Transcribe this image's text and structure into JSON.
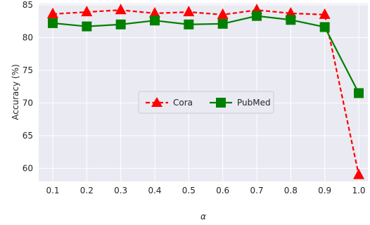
{
  "chart_data": {
    "type": "line",
    "title": "",
    "xlabel": "α",
    "ylabel": "Accuracy (%)",
    "x": [
      "0.1",
      "0.2",
      "0.3",
      "0.4",
      "0.5",
      "0.6",
      "0.7",
      "0.8",
      "0.9",
      "1.0"
    ],
    "ylim": [
      58,
      85.2
    ],
    "yticks": [
      "60",
      "65",
      "70",
      "75",
      "80",
      "85"
    ],
    "grid": true,
    "legend_position": "center",
    "series": [
      {
        "name": "Cora",
        "color": "#ff0000",
        "line_style": "dashed",
        "marker": "triangle",
        "values": [
          83.6,
          83.9,
          84.2,
          83.7,
          83.9,
          83.5,
          84.2,
          83.7,
          83.5,
          59.0
        ]
      },
      {
        "name": "PubMed",
        "color": "#008000",
        "line_style": "solid",
        "marker": "square",
        "values": [
          82.2,
          81.7,
          82.0,
          82.6,
          82.0,
          82.1,
          83.3,
          82.7,
          81.6,
          71.5
        ]
      }
    ]
  }
}
